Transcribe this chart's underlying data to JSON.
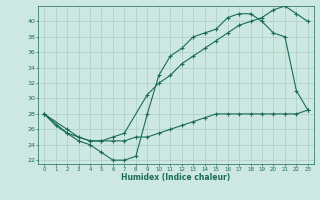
{
  "xlabel": "Humidex (Indice chaleur)",
  "bg_color": "#cde8e0",
  "grid_color": "#aacfc5",
  "line_color": "#1a6b5a",
  "xlim": [
    -0.5,
    23.5
  ],
  "ylim": [
    21.5,
    42
  ],
  "yticks": [
    22,
    24,
    26,
    28,
    30,
    32,
    34,
    36,
    38,
    40
  ],
  "xticks": [
    0,
    1,
    2,
    3,
    4,
    5,
    6,
    7,
    8,
    9,
    10,
    11,
    12,
    13,
    14,
    15,
    16,
    17,
    18,
    19,
    20,
    21,
    22,
    23
  ],
  "line1_x": [
    0,
    1,
    2,
    3,
    4,
    5,
    6,
    7,
    8,
    9,
    10,
    11,
    12,
    13,
    14,
    15,
    16,
    17,
    18,
    19,
    20,
    21,
    22,
    23
  ],
  "line1_y": [
    28,
    26.5,
    25.5,
    24.5,
    24.0,
    23.0,
    22.0,
    22.0,
    22.5,
    28.0,
    33.0,
    35.5,
    36.5,
    38.0,
    38.5,
    39.0,
    40.5,
    41.0,
    41.0,
    40.0,
    38.5,
    38.0,
    31.0,
    28.5
  ],
  "line2_x": [
    0,
    2,
    3,
    4,
    5,
    6,
    7,
    9,
    10,
    11,
    12,
    13,
    14,
    15,
    16,
    17,
    18,
    19,
    20,
    21,
    22,
    23
  ],
  "line2_y": [
    28,
    26.0,
    25.0,
    24.5,
    24.5,
    25.0,
    25.5,
    30.5,
    32.0,
    33.0,
    34.5,
    35.5,
    36.5,
    37.5,
    38.5,
    39.5,
    40.0,
    40.5,
    41.5,
    42.0,
    41.0,
    40.0
  ],
  "line3_x": [
    0,
    2,
    3,
    4,
    5,
    6,
    7,
    8,
    9,
    10,
    11,
    12,
    13,
    14,
    15,
    16,
    17,
    18,
    19,
    20,
    21,
    22,
    23
  ],
  "line3_y": [
    28,
    25.5,
    25.0,
    24.5,
    24.5,
    24.5,
    24.5,
    25.0,
    25.0,
    25.5,
    26.0,
    26.5,
    27.0,
    27.5,
    28.0,
    28.0,
    28.0,
    28.0,
    28.0,
    28.0,
    28.0,
    28.0,
    28.5
  ]
}
